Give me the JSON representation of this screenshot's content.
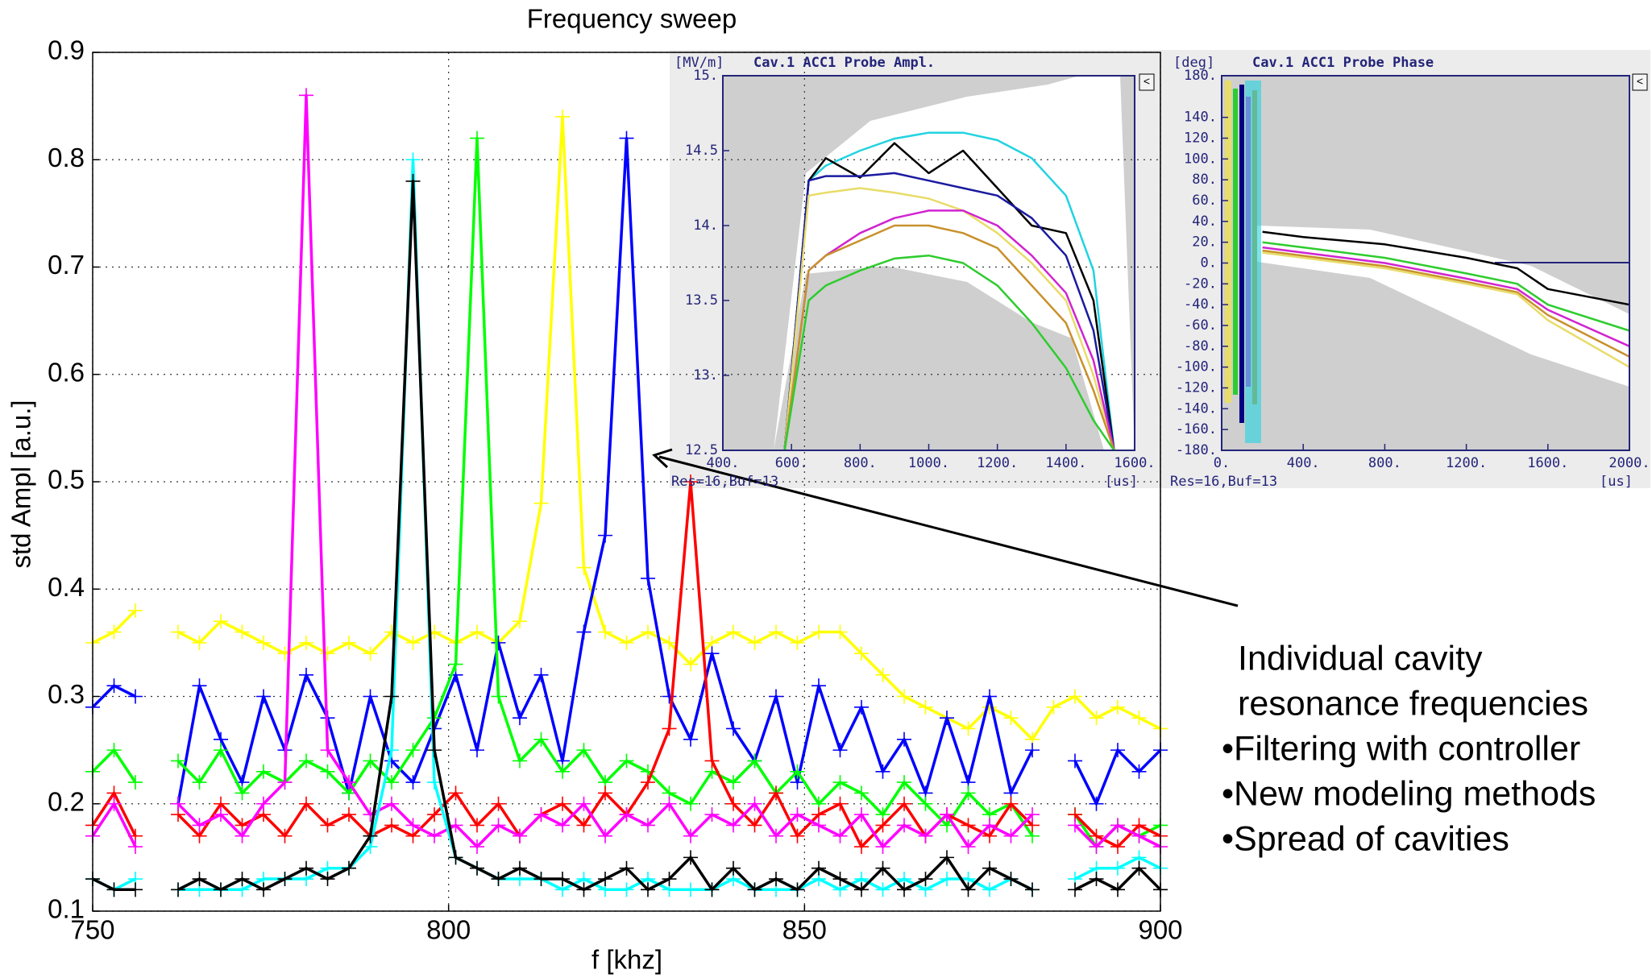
{
  "chart_data": [
    {
      "type": "line",
      "title": "Frequency sweep",
      "xlabel": "f [khz]",
      "ylabel": "std Ampl [a.u.]",
      "x": [
        750,
        753,
        756,
        759,
        762,
        765,
        768,
        771,
        774,
        777,
        780,
        783,
        786,
        789,
        792,
        795,
        798,
        801,
        804,
        807,
        810,
        813,
        816,
        819,
        822,
        825,
        828,
        831,
        834,
        837,
        840,
        843,
        846,
        849,
        852,
        855,
        858,
        861,
        864,
        867,
        870,
        873,
        876,
        879,
        882,
        885,
        888,
        891,
        894,
        897,
        900
      ],
      "xlim": [
        750,
        900
      ],
      "xticks": [
        750,
        800,
        850,
        900
      ],
      "ylim": [
        0.1,
        0.9
      ],
      "yticks": [
        0.1,
        0.2,
        0.3,
        0.4,
        0.5,
        0.6,
        0.7,
        0.8,
        0.9
      ],
      "grid": true,
      "markers": "+",
      "series": [
        {
          "color": "#ffff00",
          "values": [
            0.35,
            0.36,
            0.38,
            null,
            0.36,
            0.35,
            0.37,
            0.36,
            0.35,
            0.34,
            0.35,
            0.34,
            0.35,
            0.34,
            0.36,
            0.35,
            0.36,
            0.35,
            0.36,
            0.35,
            0.37,
            0.48,
            0.84,
            0.42,
            0.36,
            0.35,
            0.36,
            0.35,
            0.33,
            0.35,
            0.36,
            0.35,
            0.36,
            0.35,
            0.36,
            0.36,
            0.34,
            0.32,
            0.3,
            0.29,
            0.28,
            0.27,
            0.29,
            0.28,
            0.26,
            0.29,
            0.3,
            0.28,
            0.29,
            0.28,
            0.27
          ]
        },
        {
          "color": "#0000ff",
          "values": [
            0.29,
            0.31,
            0.3,
            null,
            0.2,
            0.31,
            0.26,
            0.22,
            0.3,
            0.25,
            0.32,
            0.28,
            0.21,
            0.3,
            0.24,
            0.22,
            0.27,
            0.32,
            0.25,
            0.35,
            0.28,
            0.32,
            0.24,
            0.36,
            0.45,
            0.82,
            0.41,
            0.3,
            0.26,
            0.34,
            0.27,
            0.24,
            0.3,
            0.22,
            0.31,
            0.25,
            0.29,
            0.23,
            0.26,
            0.21,
            0.28,
            0.22,
            0.3,
            0.21,
            0.25,
            null,
            0.24,
            0.2,
            0.25,
            0.23,
            0.25
          ]
        },
        {
          "color": "#00ff00",
          "values": [
            0.23,
            0.25,
            0.22,
            null,
            0.24,
            0.22,
            0.25,
            0.21,
            0.23,
            0.22,
            0.24,
            0.23,
            0.21,
            0.24,
            0.22,
            0.25,
            0.28,
            0.33,
            0.82,
            0.3,
            0.24,
            0.26,
            0.23,
            0.25,
            0.22,
            0.24,
            0.23,
            0.21,
            0.2,
            0.23,
            0.22,
            0.24,
            0.21,
            0.23,
            0.2,
            0.22,
            0.21,
            0.19,
            0.22,
            0.2,
            0.18,
            0.21,
            0.19,
            0.2,
            0.17,
            null,
            0.19,
            0.16,
            0.18,
            0.17,
            0.18
          ]
        },
        {
          "color": "#ff0000",
          "values": [
            0.18,
            0.21,
            0.17,
            null,
            0.19,
            0.17,
            0.2,
            0.18,
            0.19,
            0.17,
            0.2,
            0.18,
            0.19,
            0.17,
            0.18,
            0.17,
            0.19,
            0.21,
            0.18,
            0.2,
            0.17,
            0.19,
            0.2,
            0.18,
            0.21,
            0.19,
            0.22,
            0.27,
            0.5,
            0.24,
            0.2,
            0.18,
            0.21,
            0.17,
            0.19,
            0.2,
            0.16,
            0.18,
            0.2,
            0.17,
            0.19,
            0.18,
            0.17,
            0.2,
            0.18,
            null,
            0.19,
            0.17,
            0.16,
            0.18,
            0.17
          ]
        },
        {
          "color": "#ff00ff",
          "values": [
            0.17,
            0.2,
            0.16,
            null,
            0.2,
            0.18,
            0.19,
            0.17,
            0.2,
            0.22,
            0.86,
            0.25,
            0.22,
            0.19,
            0.2,
            0.18,
            0.17,
            0.18,
            0.16,
            0.18,
            0.17,
            0.19,
            0.18,
            0.2,
            0.17,
            0.19,
            0.18,
            0.2,
            0.17,
            0.19,
            0.18,
            0.2,
            0.17,
            0.19,
            0.18,
            0.17,
            0.19,
            0.16,
            0.18,
            0.17,
            0.19,
            0.16,
            0.18,
            0.17,
            0.19,
            null,
            0.18,
            0.16,
            0.18,
            0.17,
            0.16
          ]
        },
        {
          "color": "#00ffff",
          "values": [
            0.13,
            0.12,
            0.13,
            null,
            0.12,
            0.12,
            0.12,
            0.12,
            0.13,
            0.13,
            0.13,
            0.14,
            0.14,
            0.16,
            0.25,
            0.8,
            0.22,
            0.15,
            0.14,
            0.13,
            0.13,
            0.13,
            0.12,
            0.13,
            0.12,
            0.12,
            0.13,
            0.12,
            0.12,
            0.12,
            0.13,
            0.12,
            0.12,
            0.12,
            0.13,
            0.12,
            0.13,
            0.12,
            0.13,
            0.12,
            0.13,
            0.13,
            0.12,
            0.13,
            0.12,
            null,
            0.13,
            0.14,
            0.14,
            0.15,
            0.14
          ]
        },
        {
          "color": "#000000",
          "values": [
            0.13,
            0.12,
            0.12,
            null,
            0.12,
            0.13,
            0.12,
            0.13,
            0.12,
            0.13,
            0.14,
            0.13,
            0.14,
            0.17,
            0.3,
            0.78,
            0.25,
            0.15,
            0.14,
            0.13,
            0.14,
            0.13,
            0.13,
            0.12,
            0.13,
            0.14,
            0.12,
            0.13,
            0.15,
            0.12,
            0.14,
            0.12,
            0.13,
            0.12,
            0.14,
            0.13,
            0.12,
            0.14,
            0.12,
            0.13,
            0.15,
            0.12,
            0.14,
            0.13,
            0.12,
            null,
            0.12,
            0.13,
            0.12,
            0.14,
            0.12
          ]
        }
      ]
    },
    {
      "type": "line",
      "title": "Cav.1 ACC1 Probe Ampl.",
      "y_unit": "[MV/m]",
      "x_unit": "[us]",
      "footer": "Res=16,Buf=13",
      "x": [
        580,
        650,
        700,
        800,
        900,
        1000,
        1100,
        1200,
        1300,
        1400,
        1480,
        1540
      ],
      "xlim": [
        400,
        1600
      ],
      "xticks": [
        {
          "value": 400,
          "label": "400."
        },
        {
          "value": 600,
          "label": "600."
        },
        {
          "value": 800,
          "label": "800."
        },
        {
          "value": 1000,
          "label": "1000."
        },
        {
          "value": 1200,
          "label": "1200."
        },
        {
          "value": 1400,
          "label": "1400."
        },
        {
          "value": 1600,
          "label": "1600."
        }
      ],
      "ylim": [
        12.5,
        15
      ],
      "yticks": [
        12.5,
        {
          "value": 13,
          "label": "13."
        },
        13.5,
        {
          "value": 14,
          "label": "14."
        },
        14.5,
        {
          "value": 15,
          "label": "15."
        }
      ],
      "grid": false,
      "series": [
        {
          "color": "#22d3e0",
          "values": [
            12.5,
            14.3,
            14.4,
            14.5,
            14.58,
            14.62,
            14.62,
            14.57,
            14.45,
            14.2,
            13.7,
            12.5
          ]
        },
        {
          "color": "#000000",
          "values": [
            12.5,
            14.3,
            14.45,
            14.32,
            14.55,
            14.35,
            14.5,
            14.25,
            14.0,
            13.95,
            13.5,
            12.5
          ]
        },
        {
          "color": "#1a1aa0",
          "values": [
            12.5,
            14.3,
            14.33,
            14.33,
            14.35,
            14.3,
            14.25,
            14.2,
            14.05,
            13.8,
            13.3,
            12.5
          ]
        },
        {
          "color": "#e8dc6a",
          "values": [
            12.5,
            14.2,
            14.22,
            14.25,
            14.22,
            14.18,
            14.1,
            13.95,
            13.75,
            13.5,
            13.0,
            12.5
          ]
        },
        {
          "color": "#d024d0",
          "values": [
            12.5,
            13.7,
            13.8,
            13.95,
            14.05,
            14.1,
            14.1,
            14.0,
            13.8,
            13.55,
            13.1,
            12.5
          ]
        },
        {
          "color": "#c8912c",
          "values": [
            12.5,
            13.7,
            13.8,
            13.9,
            14.0,
            14.0,
            13.95,
            13.85,
            13.6,
            13.35,
            12.9,
            12.5
          ]
        },
        {
          "color": "#2ecc2e",
          "values": [
            12.5,
            13.5,
            13.6,
            13.7,
            13.78,
            13.8,
            13.75,
            13.6,
            13.35,
            13.05,
            12.7,
            12.5
          ]
        }
      ]
    },
    {
      "type": "line",
      "title": "Cav.1 ACC1 Probe Phase",
      "y_unit": "[deg]",
      "x_unit": "[us]",
      "footer": "Res=16,Buf=13",
      "x": [
        200,
        400,
        800,
        1200,
        1450,
        1600,
        2000
      ],
      "xlim": [
        0,
        2000
      ],
      "xticks": [
        {
          "value": 0,
          "label": "0."
        },
        {
          "value": 400,
          "label": "400."
        },
        {
          "value": 800,
          "label": "800."
        },
        {
          "value": 1200,
          "label": "1200."
        },
        {
          "value": 1600,
          "label": "1600."
        },
        {
          "value": 2000,
          "label": "2000."
        }
      ],
      "ylim": [
        -180,
        180
      ],
      "yticks": [
        {
          "value": -180,
          "label": "-180."
        },
        {
          "value": -160,
          "label": "-160."
        },
        {
          "value": -140,
          "label": "-140."
        },
        {
          "value": -120,
          "label": "-120."
        },
        {
          "value": -100,
          "label": "-100."
        },
        {
          "value": -80,
          "label": "-80."
        },
        {
          "value": -60,
          "label": "-60."
        },
        {
          "value": -40,
          "label": "-40."
        },
        {
          "value": -20,
          "label": "-20."
        },
        {
          "value": 0,
          "label": "0."
        },
        {
          "value": 20,
          "label": "20."
        },
        {
          "value": 40,
          "label": "40."
        },
        {
          "value": 60,
          "label": "60."
        },
        {
          "value": 80,
          "label": "80."
        },
        {
          "value": 100,
          "label": "100."
        },
        {
          "value": 120,
          "label": "120."
        },
        {
          "value": 140,
          "label": "140."
        },
        {
          "value": 180,
          "label": "180."
        }
      ],
      "grid": false,
      "series": [
        {
          "color": "#000000",
          "values": [
            30,
            25,
            18,
            5,
            -5,
            -25,
            -40
          ]
        },
        {
          "color": "#2ecc2e",
          "values": [
            20,
            15,
            5,
            -10,
            -20,
            -40,
            -65
          ]
        },
        {
          "color": "#d024d0",
          "values": [
            15,
            10,
            0,
            -15,
            -25,
            -45,
            -80
          ]
        },
        {
          "color": "#c8912c",
          "values": [
            12,
            7,
            -3,
            -18,
            -28,
            -50,
            -90
          ]
        },
        {
          "color": "#e8dc6a",
          "values": [
            10,
            5,
            -5,
            -20,
            -30,
            -55,
            -100
          ]
        }
      ]
    }
  ],
  "annotation": {
    "lines": [
      "Individual cavity",
      "resonance frequencies",
      "•Filtering with controller",
      "•New modeling methods",
      "•Spread of cavities"
    ]
  }
}
